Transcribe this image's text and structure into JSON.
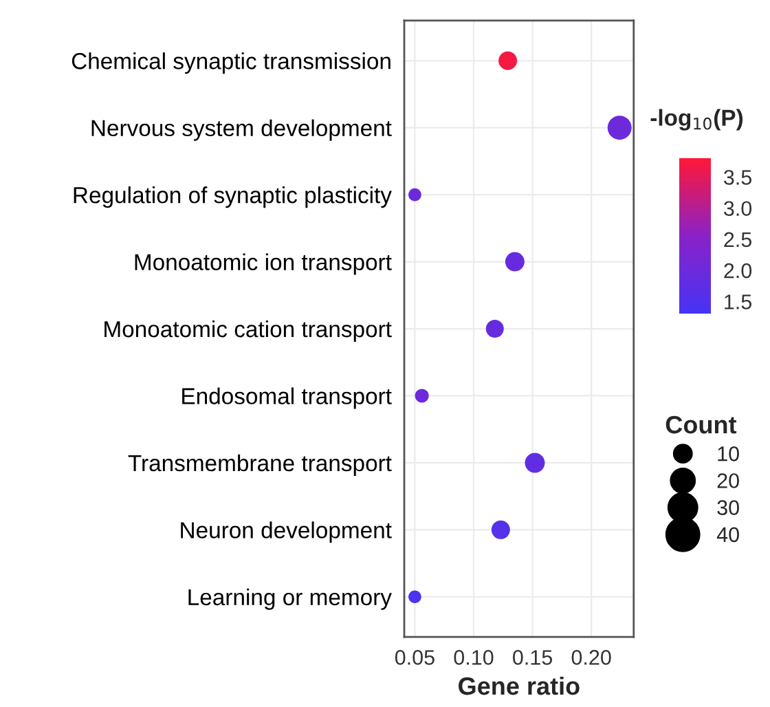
{
  "chart_data": {
    "type": "scatter",
    "orientation": "horizontal",
    "xlabel": "Gene ratio",
    "clabel": "-log$_{10}$(P)",
    "legend_title": "Count",
    "grid": true,
    "categories": [
      "Chemical synaptic transmission",
      "Nervous system development",
      "Regulation of synaptic plasticity",
      "Monoatomic ion transport",
      "Monoatomic cation transport",
      "Endosomal transport",
      "Transmembrane transport",
      "Neuron development",
      "Learning or memory"
    ],
    "values": [
      0.129,
      0.224,
      0.05,
      0.135,
      0.118,
      0.056,
      0.152,
      0.123,
      0.05
    ],
    "cvalues": [
      3.7,
      2.0,
      2.0,
      1.9,
      1.9,
      2.0,
      1.8,
      1.6,
      1.4
    ],
    "sizes": [
      11,
      20,
      4,
      12,
      10,
      5,
      13,
      11,
      4
    ],
    "size_legend": [
      10,
      20,
      30,
      40
    ],
    "clim": [
      1.3,
      3.8
    ],
    "cticks": [
      {
        "value": 1.5,
        "label": "1.5"
      },
      {
        "value": 2.0,
        "label": "2.0"
      },
      {
        "value": 2.5,
        "label": "2.5"
      },
      {
        "value": 3.0,
        "label": "3.0"
      },
      {
        "value": 3.5,
        "label": "3.5"
      }
    ],
    "xlim": [
      0.041,
      0.236
    ],
    "xticks": [
      {
        "value": 0.05,
        "label": "0.05"
      },
      {
        "value": 0.1,
        "label": "0.10"
      },
      {
        "value": 0.15,
        "label": "0.15"
      },
      {
        "value": 0.2,
        "label": "0.20"
      }
    ]
  }
}
